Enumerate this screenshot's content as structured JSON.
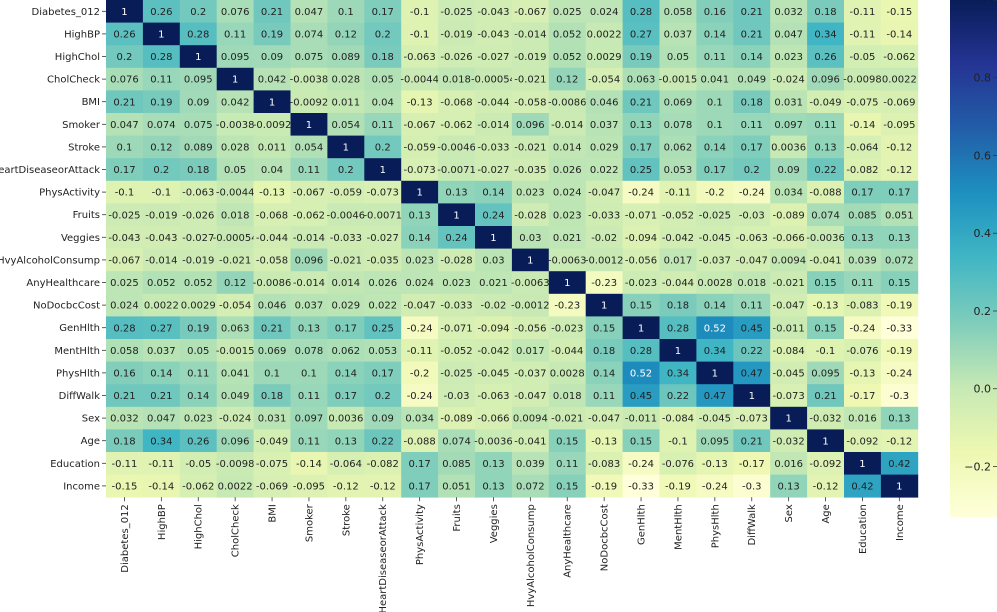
{
  "chart_data": {
    "type": "heatmap",
    "title": "",
    "xlabel": "",
    "ylabel": "",
    "annotations": "cell values printed in each cell",
    "colormap": "YlGnBu",
    "colormap_stops": [
      "#ffffd9",
      "#edf8b1",
      "#c7e9b4",
      "#7fcdbb",
      "#41b6c4",
      "#1d91c0",
      "#225ea8",
      "#253494",
      "#081d58"
    ],
    "color_range": [
      -0.33,
      1
    ],
    "colorbar": {
      "position": "right",
      "ticks": [
        1,
        0.8,
        0.6,
        0.4,
        0.2,
        0.0,
        -0.2
      ],
      "tick_labels": [
        "1",
        "0.8",
        "0.6",
        "0.4",
        "0.2",
        "0.0",
        "−0.2"
      ]
    },
    "row_labels": [
      "Diabetes_012",
      "HighBP",
      "HighChol",
      "CholCheck",
      "BMI",
      "Smoker",
      "Stroke",
      "HeartDiseaseorAttack",
      "PhysActivity",
      "Fruits",
      "Veggies",
      "HvyAlcoholConsump",
      "AnyHealthcare",
      "NoDocbcCost",
      "GenHlth",
      "MentHlth",
      "PhysHlth",
      "DiffWalk",
      "Sex",
      "Age",
      "Education",
      "Income"
    ],
    "col_labels": [
      "Diabetes_012",
      "HighBP",
      "HighChol",
      "CholCheck",
      "BMI",
      "Smoker",
      "Stroke",
      "HeartDiseaseorAttack",
      "PhysActivity",
      "Fruits",
      "Veggies",
      "HvyAlcoholConsump",
      "AnyHealthcare",
      "NoDocbcCost",
      "GenHlth",
      "MentHlth",
      "PhysHlth",
      "DiffWalk",
      "Sex",
      "Age",
      "Education",
      "Income"
    ],
    "values": [
      [
        "1",
        "0.26",
        "0.2",
        "0.076",
        "0.21",
        "0.047",
        "0.1",
        "0.17",
        "-0.1",
        "-0.025",
        "-0.043",
        "-0.067",
        "0.025",
        "0.024",
        "0.28",
        "0.058",
        "0.16",
        "0.21",
        "0.032",
        "0.18",
        "-0.11",
        "-0.15"
      ],
      [
        "0.26",
        "1",
        "0.28",
        "0.11",
        "0.19",
        "0.074",
        "0.12",
        "0.2",
        "-0.1",
        "-0.019",
        "-0.043",
        "-0.014",
        "0.052",
        "0.0022",
        "0.27",
        "0.037",
        "0.14",
        "0.21",
        "0.047",
        "0.34",
        "-0.11",
        "-0.14"
      ],
      [
        "0.2",
        "0.28",
        "1",
        "0.095",
        "0.09",
        "0.075",
        "0.089",
        "0.18",
        "-0.063",
        "-0.026",
        "-0.027",
        "-0.019",
        "0.052",
        "0.0029",
        "0.19",
        "0.05",
        "0.11",
        "0.14",
        "0.023",
        "0.26",
        "-0.05",
        "-0.062"
      ],
      [
        "0.076",
        "0.11",
        "0.095",
        "1",
        "0.042",
        "-0.0038",
        "0.028",
        "0.05",
        "-0.0044",
        "0.018",
        "-0.00054",
        "-0.021",
        "0.12",
        "-0.054",
        "0.063",
        "-0.0015",
        "0.041",
        "0.049",
        "-0.024",
        "0.096",
        "-0.0098",
        "0.0022"
      ],
      [
        "0.21",
        "0.19",
        "0.09",
        "0.042",
        "1",
        "-0.0092",
        "0.011",
        "0.04",
        "-0.13",
        "-0.068",
        "-0.044",
        "-0.058",
        "-0.0086",
        "0.046",
        "0.21",
        "0.069",
        "0.1",
        "0.18",
        "0.031",
        "-0.049",
        "-0.075",
        "-0.069"
      ],
      [
        "0.047",
        "0.074",
        "0.075",
        "-0.0038",
        "-0.0092",
        "1",
        "0.054",
        "0.11",
        "-0.067",
        "-0.062",
        "-0.014",
        "0.096",
        "-0.014",
        "0.037",
        "0.13",
        "0.078",
        "0.1",
        "0.11",
        "0.097",
        "0.11",
        "-0.14",
        "-0.095"
      ],
      [
        "0.1",
        "0.12",
        "0.089",
        "0.028",
        "0.011",
        "0.054",
        "1",
        "0.2",
        "-0.059",
        "-0.0046",
        "-0.033",
        "-0.021",
        "0.014",
        "0.029",
        "0.17",
        "0.062",
        "0.14",
        "0.17",
        "0.0036",
        "0.13",
        "-0.064",
        "-0.12"
      ],
      [
        "0.17",
        "0.2",
        "0.18",
        "0.05",
        "0.04",
        "0.11",
        "0.2",
        "1",
        "-0.073",
        "-0.0071",
        "-0.027",
        "-0.035",
        "0.026",
        "0.022",
        "0.25",
        "0.053",
        "0.17",
        "0.2",
        "0.09",
        "0.22",
        "-0.082",
        "-0.12"
      ],
      [
        "-0.1",
        "-0.1",
        "-0.063",
        "-0.0044",
        "-0.13",
        "-0.067",
        "-0.059",
        "-0.073",
        "1",
        "0.13",
        "0.14",
        "0.023",
        "0.024",
        "-0.047",
        "-0.24",
        "-0.11",
        "-0.2",
        "-0.24",
        "0.034",
        "-0.088",
        "0.17",
        "0.17"
      ],
      [
        "-0.025",
        "-0.019",
        "-0.026",
        "0.018",
        "-0.068",
        "-0.062",
        "-0.0046",
        "-0.0071",
        "0.13",
        "1",
        "0.24",
        "-0.028",
        "0.023",
        "-0.033",
        "-0.071",
        "-0.052",
        "-0.025",
        "-0.03",
        "-0.089",
        "0.074",
        "0.085",
        "0.051"
      ],
      [
        "-0.043",
        "-0.043",
        "-0.027",
        "-0.00054",
        "-0.044",
        "-0.014",
        "-0.033",
        "-0.027",
        "0.14",
        "0.24",
        "1",
        "0.03",
        "0.021",
        "-0.02",
        "-0.094",
        "-0.042",
        "-0.045",
        "-0.063",
        "-0.066",
        "-0.0036",
        "0.13",
        "0.13"
      ],
      [
        "-0.067",
        "-0.014",
        "-0.019",
        "-0.021",
        "-0.058",
        "0.096",
        "-0.021",
        "-0.035",
        "0.023",
        "-0.028",
        "0.03",
        "1",
        "-0.0063",
        "-0.0012",
        "-0.056",
        "0.017",
        "-0.037",
        "-0.047",
        "0.0094",
        "-0.041",
        "0.039",
        "0.072"
      ],
      [
        "0.025",
        "0.052",
        "0.052",
        "0.12",
        "-0.0086",
        "-0.014",
        "0.014",
        "0.026",
        "0.024",
        "0.023",
        "0.021",
        "-0.0063",
        "1",
        "-0.23",
        "-0.023",
        "-0.044",
        "0.0028",
        "0.018",
        "-0.021",
        "0.15",
        "0.11",
        "0.15"
      ],
      [
        "0.024",
        "0.0022",
        "0.0029",
        "-0.054",
        "0.046",
        "0.037",
        "0.029",
        "0.022",
        "-0.047",
        "-0.033",
        "-0.02",
        "-0.0012",
        "-0.23",
        "1",
        "0.15",
        "0.18",
        "0.14",
        "0.11",
        "-0.047",
        "-0.13",
        "-0.083",
        "-0.19"
      ],
      [
        "0.28",
        "0.27",
        "0.19",
        "0.063",
        "0.21",
        "0.13",
        "0.17",
        "0.25",
        "-0.24",
        "-0.071",
        "-0.094",
        "-0.056",
        "-0.023",
        "0.15",
        "1",
        "0.28",
        "0.52",
        "0.45",
        "-0.011",
        "0.15",
        "-0.24",
        "-0.33"
      ],
      [
        "0.058",
        "0.037",
        "0.05",
        "-0.0015",
        "0.069",
        "0.078",
        "0.062",
        "0.053",
        "-0.11",
        "-0.052",
        "-0.042",
        "0.017",
        "-0.044",
        "0.18",
        "0.28",
        "1",
        "0.34",
        "0.22",
        "-0.084",
        "-0.1",
        "-0.076",
        "-0.19"
      ],
      [
        "0.16",
        "0.14",
        "0.11",
        "0.041",
        "0.1",
        "0.1",
        "0.14",
        "0.17",
        "-0.2",
        "-0.025",
        "-0.045",
        "-0.037",
        "0.0028",
        "0.14",
        "0.52",
        "0.34",
        "1",
        "0.47",
        "-0.045",
        "0.095",
        "-0.13",
        "-0.24"
      ],
      [
        "0.21",
        "0.21",
        "0.14",
        "0.049",
        "0.18",
        "0.11",
        "0.17",
        "0.2",
        "-0.24",
        "-0.03",
        "-0.063",
        "-0.047",
        "0.018",
        "0.11",
        "0.45",
        "0.22",
        "0.47",
        "1",
        "-0.073",
        "0.21",
        "-0.17",
        "-0.3"
      ],
      [
        "0.032",
        "0.047",
        "0.023",
        "-0.024",
        "0.031",
        "0.097",
        "0.0036",
        "0.09",
        "0.034",
        "-0.089",
        "-0.066",
        "0.0094",
        "-0.021",
        "-0.047",
        "-0.011",
        "-0.084",
        "-0.045",
        "-0.073",
        "1",
        "-0.032",
        "0.016",
        "0.13"
      ],
      [
        "0.18",
        "0.34",
        "0.26",
        "0.096",
        "-0.049",
        "0.11",
        "0.13",
        "0.22",
        "-0.088",
        "0.074",
        "-0.0036",
        "-0.041",
        "0.15",
        "-0.13",
        "0.15",
        "-0.1",
        "0.095",
        "0.21",
        "-0.032",
        "1",
        "-0.092",
        "-0.12"
      ],
      [
        "-0.11",
        "-0.11",
        "-0.05",
        "-0.0098",
        "-0.075",
        "-0.14",
        "-0.064",
        "-0.082",
        "0.17",
        "0.085",
        "0.13",
        "0.039",
        "0.11",
        "-0.083",
        "-0.24",
        "-0.076",
        "-0.13",
        "-0.17",
        "0.016",
        "-0.092",
        "1",
        "0.42"
      ],
      [
        "-0.15",
        "-0.14",
        "-0.062",
        "0.0022",
        "-0.069",
        "-0.095",
        "-0.12",
        "-0.12",
        "0.17",
        "0.051",
        "0.13",
        "0.072",
        "0.15",
        "-0.19",
        "-0.33",
        "-0.19",
        "-0.24",
        "-0.3",
        "0.13",
        "-0.12",
        "0.42",
        "1"
      ]
    ]
  }
}
